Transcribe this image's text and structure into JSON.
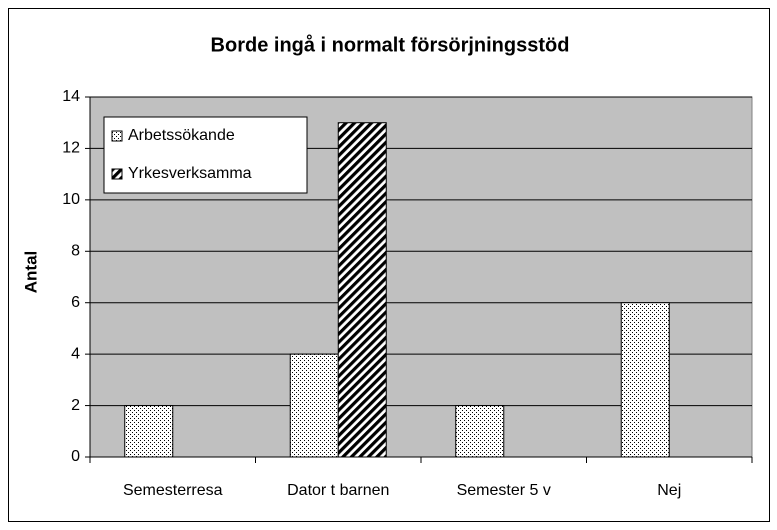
{
  "chart_data": {
    "type": "bar",
    "title": "Borde ingå i normalt försörjningsstöd",
    "ylabel": "Antal",
    "categories": [
      "Semesterresa",
      "Dator t barnen",
      "Semester 5 v",
      "Nej"
    ],
    "series": [
      {
        "name": "Arbetssökande",
        "color": "#000000",
        "pattern": "dots",
        "values": [
          2,
          4,
          2,
          6
        ]
      },
      {
        "name": "Yrkesverksamma",
        "color": "#000000",
        "pattern": "diagonal",
        "values": [
          0,
          13,
          0,
          0
        ]
      }
    ],
    "ylim": [
      0,
      14
    ],
    "yticks": [
      0,
      2,
      4,
      6,
      8,
      10,
      12,
      14
    ],
    "grid": true,
    "legend": "top-left"
  }
}
